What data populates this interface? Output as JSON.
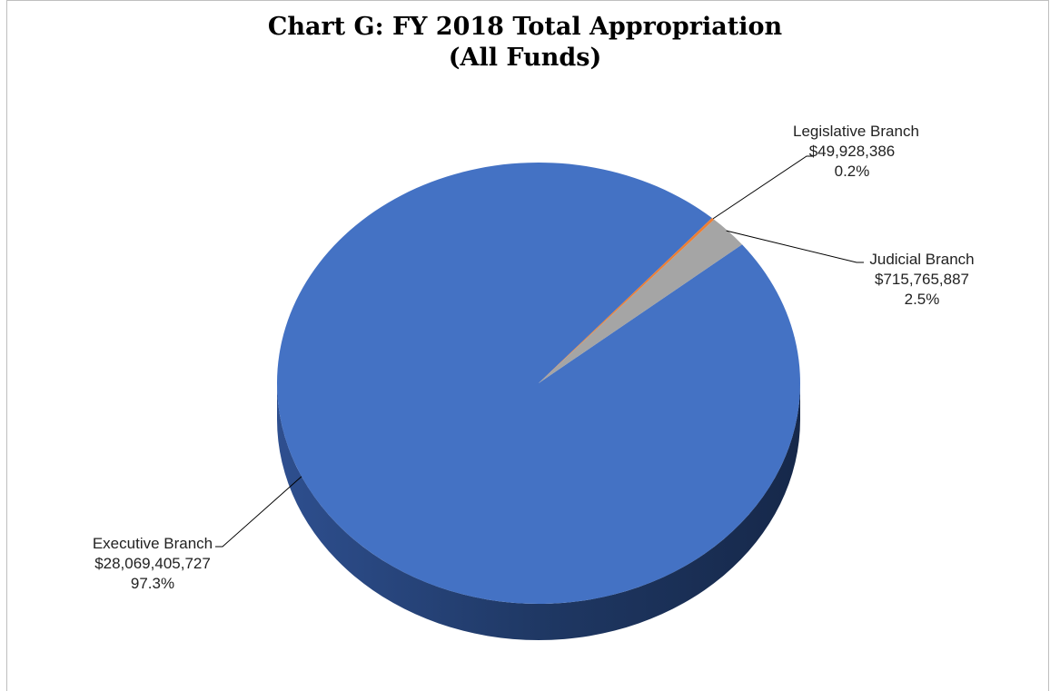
{
  "chart_data": {
    "type": "pie",
    "title_lines": [
      "Chart G:  FY 2018 Total Appropriation",
      "(All Funds)"
    ],
    "categories": [
      "Executive Branch",
      "Judicial Branch",
      "Legislative Branch"
    ],
    "values": [
      28069405727,
      715765887,
      49928386
    ],
    "value_labels": [
      "$28,069,405,727",
      "$715,765,887",
      "$49,928,386"
    ],
    "percent_labels": [
      "97.3%",
      "2.5%",
      "0.2%"
    ],
    "colors": [
      "#4472c4",
      "#a5a5a5",
      "#ed7d31"
    ],
    "side_colors": [
      "#1f3864",
      "#7f7f7f",
      "#c55a11"
    ],
    "style": "3d"
  }
}
